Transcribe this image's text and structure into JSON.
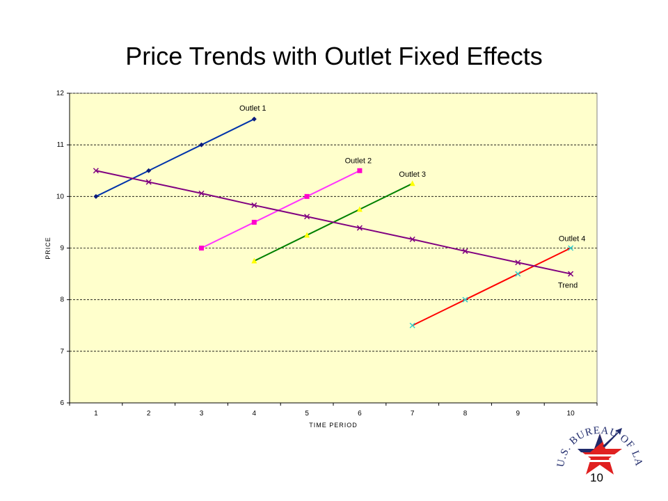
{
  "slide": {
    "title": "Price Trends with Outlet Fixed Effects",
    "page_number": "10",
    "logo_text": "U.S. BUREAU OF LABOR STATISTICS"
  },
  "colors": {
    "plot_background": "#ffffcc",
    "gridline": "#000000",
    "trend": "#800080",
    "outlet1": "#0033aa",
    "outlet2": "#ff33ff",
    "outlet3": "#008000",
    "outlet4": "#ff0000",
    "logo_blue": "#1f2a6b",
    "logo_red": "#e02020"
  },
  "chart_data": {
    "type": "line",
    "title": "",
    "xlabel": "TIME PERIOD",
    "ylabel": "PRICE",
    "xlim": [
      0.5,
      10.5
    ],
    "ylim": [
      6,
      12
    ],
    "x_ticks": [
      1,
      2,
      3,
      4,
      5,
      6,
      7,
      8,
      9,
      10
    ],
    "y_ticks": [
      6,
      7,
      8,
      9,
      10,
      11,
      12
    ],
    "grid": "horizontal dashed",
    "series": [
      {
        "name": "Outlet 1",
        "points": [
          [
            1,
            10
          ],
          [
            2,
            10.5
          ],
          [
            3,
            11
          ],
          [
            4,
            11.5
          ]
        ],
        "line_color": "#0033aa",
        "marker_color": "#0a1a7a",
        "marker": "diamond"
      },
      {
        "name": "Outlet 2",
        "points": [
          [
            3,
            9
          ],
          [
            4,
            9.5
          ],
          [
            5,
            10
          ],
          [
            6,
            10.5
          ]
        ],
        "line_color": "#ff33ff",
        "marker_color": "#ff00cc",
        "marker": "square"
      },
      {
        "name": "Outlet 3",
        "points": [
          [
            4,
            8.75
          ],
          [
            5,
            9.25
          ],
          [
            6,
            9.75
          ],
          [
            7,
            10.25
          ]
        ],
        "line_color": "#008000",
        "marker_color": "#ffff00",
        "marker": "triangle"
      },
      {
        "name": "Outlet 4",
        "points": [
          [
            7,
            7.5
          ],
          [
            8,
            8
          ],
          [
            9,
            8.5
          ],
          [
            10,
            9
          ]
        ],
        "line_color": "#ff0000",
        "marker_color": "#33cccc",
        "marker": "x"
      },
      {
        "name": "Trend",
        "points": [
          [
            1,
            10.5
          ],
          [
            2,
            10.28
          ],
          [
            3,
            10.06
          ],
          [
            4,
            9.83
          ],
          [
            5,
            9.61
          ],
          [
            6,
            9.39
          ],
          [
            7,
            9.17
          ],
          [
            8,
            8.94
          ],
          [
            9,
            8.72
          ],
          [
            10,
            8.5
          ]
        ],
        "line_color": "#800080",
        "marker_color": "#800080",
        "marker": "x"
      }
    ]
  }
}
